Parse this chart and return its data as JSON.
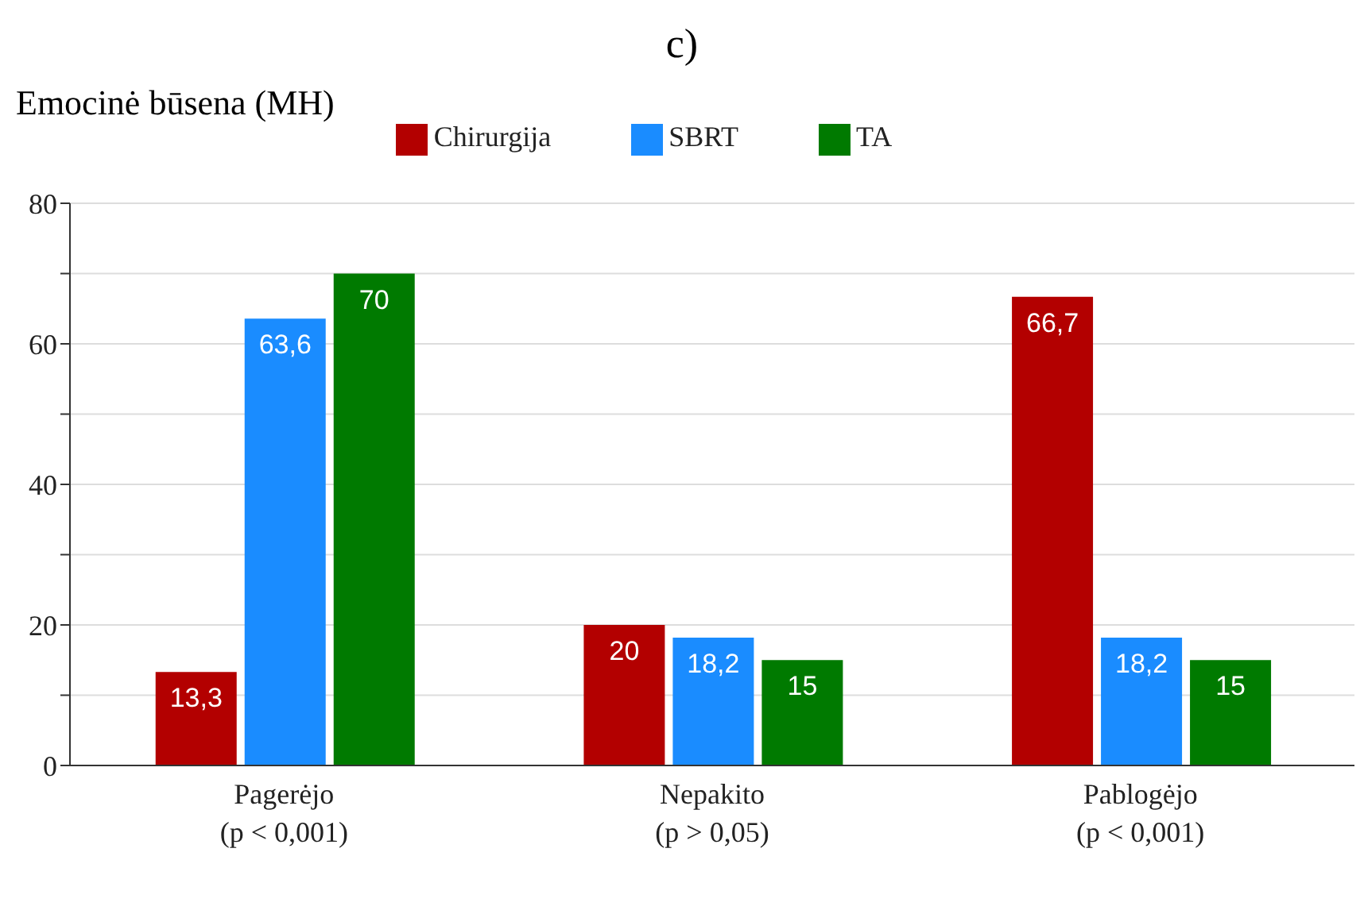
{
  "chart_data": {
    "type": "bar",
    "title": "c)",
    "ylabel": "Emocinė būsena (MH)",
    "categories": [
      "Pagerėjo\n(p < 0,001)",
      "Nepakito\n(p > 0,05)",
      "Pablogėjo\n(p < 0,001)"
    ],
    "series": [
      {
        "name": "Chirurgija",
        "color": "#b30000",
        "values": [
          13.3,
          20,
          66.7
        ],
        "value_labels": [
          "13,3",
          "20",
          "66,7"
        ]
      },
      {
        "name": "SBRT",
        "color": "#1a8cff",
        "values": [
          63.6,
          18.2,
          18.2
        ],
        "value_labels": [
          "63,6",
          "18,2",
          "18,2"
        ]
      },
      {
        "name": "TA",
        "color": "#007a00",
        "values": [
          70,
          15,
          15
        ],
        "value_labels": [
          "70",
          "15",
          "15"
        ]
      }
    ],
    "ylim": [
      0,
      80
    ],
    "yticks": [
      0,
      {
        "value": 10,
        "label": null
      },
      20,
      {
        "value": 30,
        "label": null
      },
      40,
      {
        "value": 50,
        "label": null
      },
      60,
      {
        "value": 70,
        "label": null
      },
      80
    ],
    "grid": "y",
    "legend": "top"
  }
}
